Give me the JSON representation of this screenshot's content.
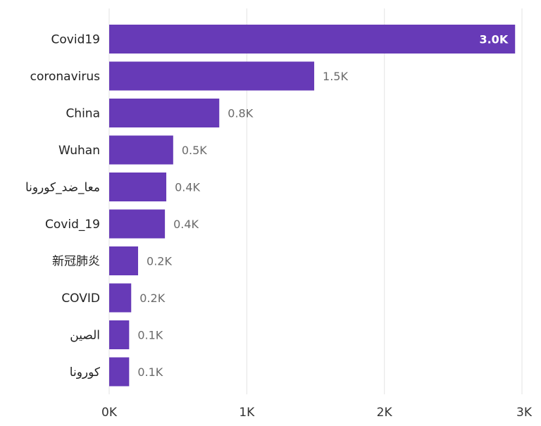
{
  "chart_data": {
    "type": "bar",
    "orientation": "horizontal",
    "categories": [
      "Covid19",
      "coronavirus",
      "China",
      "Wuhan",
      "معا_ضد_كورونا",
      "Covid_19",
      "新冠肺炎",
      "COVID",
      "الصين",
      "كورونا"
    ],
    "values": [
      2950,
      1490,
      800,
      465,
      415,
      405,
      210,
      160,
      145,
      145
    ],
    "data_labels": [
      "3.0K",
      "1.5K",
      "0.8K",
      "0.5K",
      "0.4K",
      "0.4K",
      "0.2K",
      "0.2K",
      "0.1K",
      "0.1K"
    ],
    "x_ticks": [
      "0K",
      "1K",
      "2K",
      "3K"
    ],
    "x_tick_values": [
      0,
      1000,
      2000,
      3000
    ],
    "xlim": [
      0,
      3000
    ],
    "grid": true,
    "bar_color": "#673ab7",
    "title": "",
    "xlabel": "",
    "ylabel": ""
  }
}
